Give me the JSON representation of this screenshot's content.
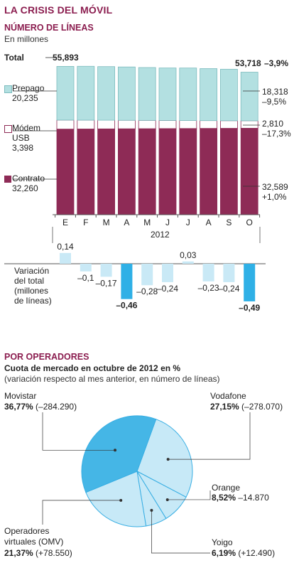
{
  "title": "LA CRISIS DEL MÓVIL",
  "section1": {
    "subtitle": "NÚMERO DE LÍNEAS",
    "unit": "En millones",
    "total_label": "Total",
    "total_start": "55,893",
    "total_end": "53,718",
    "total_change": "–3,9%",
    "legend": {
      "prepago": {
        "label": "Prepago",
        "value": "20,235",
        "end_value": "18,318",
        "end_change": "–9,5%"
      },
      "modem": {
        "label1": "Módem",
        "label2": "USB",
        "value": "3,398",
        "end_value": "2,810",
        "end_change": "–17,3%"
      },
      "contrato": {
        "label": "Contrato",
        "value": "32,260",
        "end_value": "32,589",
        "end_change": "+1,0%"
      }
    },
    "year": "2012",
    "variation_label": [
      "Variación",
      "del total",
      "(millones",
      "de líneas)"
    ]
  },
  "section2": {
    "title": "POR OPERADORES",
    "subtitle": "Cuota de mercado en octubre de 2012 en %",
    "note": "(variación respecto al mes anterior, en número de líneas)"
  },
  "colors": {
    "prepago": "#b3e0e1",
    "modem": "#ffffff",
    "contrato": "#8e2b56",
    "variation_small": "#c9e9f6",
    "variation_large": "#2fb0e6",
    "pie_movistar": "#45b6e6",
    "pie_other": "#c7e9f7",
    "pie_stroke": "#38aee3",
    "accent": "#8b1d4f"
  },
  "chart_data": [
    {
      "type": "bar",
      "title": "NÚMERO DE LÍNEAS",
      "ylabel": "En millones",
      "xlabel": "2012",
      "categories": [
        "E",
        "F",
        "M",
        "A",
        "M",
        "J",
        "J",
        "A",
        "S",
        "O"
      ],
      "series": [
        {
          "name": "Contrato",
          "values": [
            32.26,
            32.3,
            32.34,
            32.38,
            32.41,
            32.45,
            32.48,
            32.52,
            32.55,
            32.589
          ]
        },
        {
          "name": "Módem USB",
          "values": [
            3.398,
            3.33,
            3.27,
            3.2,
            3.14,
            3.07,
            3.0,
            2.94,
            2.87,
            2.81
          ]
        },
        {
          "name": "Prepago",
          "values": [
            20.235,
            20.3,
            20.2,
            20.1,
            19.91,
            19.77,
            19.8,
            19.6,
            19.41,
            18.318
          ]
        }
      ],
      "totals": [
        55.893,
        55.93,
        55.81,
        55.68,
        55.46,
        55.29,
        55.28,
        55.06,
        54.83,
        53.718
      ],
      "stacked": true,
      "ylim": [
        0,
        56
      ]
    },
    {
      "type": "bar",
      "title": "Variación del total (millones de líneas)",
      "categories": [
        "E",
        "F",
        "M",
        "A",
        "M",
        "J",
        "J",
        "A",
        "S",
        "O"
      ],
      "values": [
        0.14,
        -0.1,
        -0.17,
        -0.46,
        -0.28,
        -0.24,
        0.03,
        -0.23,
        -0.24,
        -0.49
      ],
      "value_labels": [
        "0,14",
        "–0,1",
        "–0,17",
        "–0,46",
        "–0,28",
        "–0,24",
        "0,03",
        "–0,23",
        "–0,24",
        "–0,49"
      ],
      "highlighted": [
        false,
        false,
        false,
        true,
        false,
        false,
        false,
        false,
        false,
        true
      ]
    },
    {
      "type": "pie",
      "title": "Cuota de mercado en octubre de 2012 en %",
      "slices": [
        {
          "name": "Movistar",
          "value": 36.77,
          "value_label": "36,77%",
          "change": "(–284.290)"
        },
        {
          "name": "Vodafone",
          "value": 27.15,
          "value_label": "27,15%",
          "change": "(–278.070)"
        },
        {
          "name": "Orange",
          "value": 8.52,
          "value_label": "8,52%",
          "change": "–14.870"
        },
        {
          "name": "Yoigo",
          "value": 6.19,
          "value_label": "6,19%",
          "change": "(+12.490)"
        },
        {
          "name": "Operadores virtuales (OMV)",
          "name_line1": "Operadores",
          "name_line2": "virtuales (OMV)",
          "value": 21.37,
          "value_label": "21,37%",
          "change": "(+78.550)"
        }
      ]
    }
  ]
}
